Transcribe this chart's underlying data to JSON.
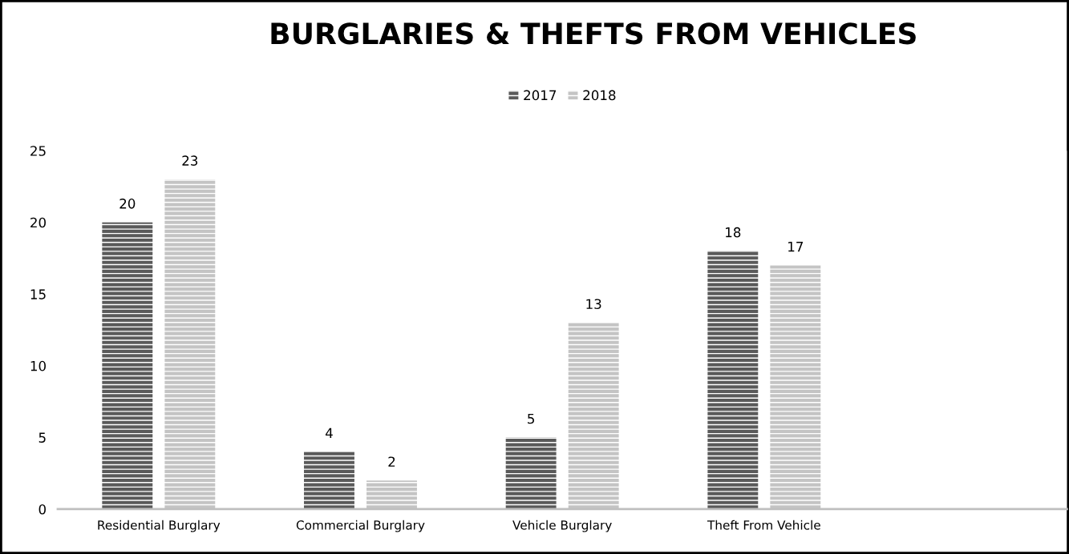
{
  "chart_data": {
    "type": "bar",
    "title": "BURGLARIES & THEFTS FROM VEHICLES",
    "categories": [
      "Residential Burglary",
      "Commercial Burglary",
      "Vehicle Burglary",
      "Theft From Vehicle",
      null
    ],
    "series": [
      {
        "name": "2017",
        "color": "#5a5a5a",
        "values": [
          20,
          4,
          5,
          18,
          null
        ]
      },
      {
        "name": "2018",
        "color": "#c4c4c4",
        "values": [
          23,
          2,
          13,
          17,
          null
        ]
      }
    ],
    "ylim": [
      0,
      25
    ],
    "yticks": [
      0,
      5,
      10,
      15,
      20,
      25
    ],
    "grid": false,
    "legend": "top",
    "data_labels": true
  }
}
